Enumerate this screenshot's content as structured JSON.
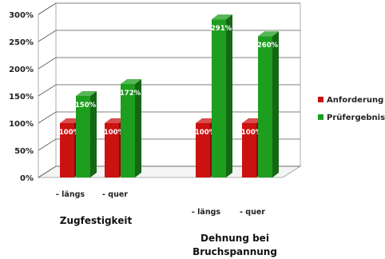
{
  "chart_data": {
    "type": "bar",
    "categories": [
      "- längs",
      "- quer",
      "- längs",
      "- quer"
    ],
    "groups": [
      {
        "label_lines": [
          "Zugfestigkeit"
        ],
        "categories": [
          0,
          1
        ]
      },
      {
        "label_lines": [
          "Dehnung bei",
          "Bruchspannung"
        ],
        "categories": [
          2,
          3
        ]
      }
    ],
    "series": [
      {
        "name": "Anforderung",
        "color": "#cc1111",
        "values": [
          100,
          100,
          100,
          100
        ],
        "labels": [
          "100%",
          "100%",
          "100%",
          "100%"
        ]
      },
      {
        "name": "Prüfergebniss",
        "color": "#1e9e1e",
        "values": [
          150,
          172,
          291,
          260
        ],
        "labels": [
          "150%",
          "172%",
          "291%",
          "260%"
        ]
      }
    ],
    "yticks": [
      "0%",
      "50%",
      "100%",
      "150%",
      "200%",
      "250%",
      "300%"
    ],
    "ylim": [
      0,
      300
    ],
    "grid": true,
    "style": "3d-column",
    "legend_position": "right"
  }
}
